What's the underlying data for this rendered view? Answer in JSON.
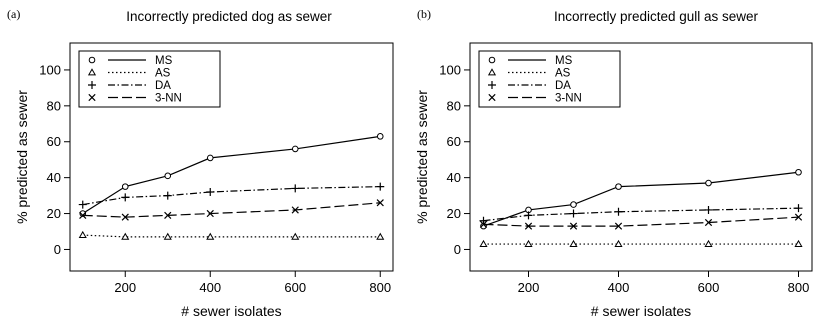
{
  "chart_data": [
    {
      "type": "line",
      "panel_label": "(a)",
      "title": "Incorrectly predicted dog as sewer",
      "xlabel": "# sewer isolates",
      "ylabel": "% predicted as sewer",
      "x": [
        100,
        200,
        300,
        400,
        600,
        800
      ],
      "xticks": [
        200,
        400,
        600,
        800
      ],
      "yticks": [
        0,
        20,
        40,
        60,
        80,
        100
      ],
      "ylim": [
        -12,
        115
      ],
      "xlim": [
        70,
        830
      ],
      "legend_position": "top-left",
      "grid": false,
      "series": [
        {
          "name": "MS",
          "marker": "circle",
          "dash": "solid",
          "values": [
            20,
            35,
            41,
            51,
            56,
            63
          ]
        },
        {
          "name": "AS",
          "marker": "triangle",
          "dash": "dotted",
          "values": [
            8,
            7,
            7,
            7,
            7,
            7
          ]
        },
        {
          "name": "DA",
          "marker": "plus",
          "dash": "dotdash",
          "values": [
            25,
            29,
            30,
            32,
            34,
            35
          ]
        },
        {
          "name": "3-NN",
          "marker": "x",
          "dash": "longdash",
          "values": [
            19,
            18,
            19,
            20,
            22,
            26
          ]
        }
      ]
    },
    {
      "type": "line",
      "panel_label": "(b)",
      "title": "Incorrectly predicted gull as sewer",
      "xlabel": "# sewer isolates",
      "ylabel": "% predicted as sewer",
      "x": [
        100,
        200,
        300,
        400,
        600,
        800
      ],
      "xticks": [
        200,
        400,
        600,
        800
      ],
      "yticks": [
        0,
        20,
        40,
        60,
        80,
        100
      ],
      "ylim": [
        -12,
        115
      ],
      "xlim": [
        70,
        830
      ],
      "legend_position": "top-left",
      "grid": false,
      "series": [
        {
          "name": "MS",
          "marker": "circle",
          "dash": "solid",
          "values": [
            13,
            22,
            25,
            35,
            37,
            43
          ]
        },
        {
          "name": "AS",
          "marker": "triangle",
          "dash": "dotted",
          "values": [
            3,
            3,
            3,
            3,
            3,
            3
          ]
        },
        {
          "name": "DA",
          "marker": "plus",
          "dash": "dotdash",
          "values": [
            16,
            19,
            20,
            21,
            22,
            23
          ]
        },
        {
          "name": "3-NN",
          "marker": "x",
          "dash": "longdash",
          "values": [
            14,
            13,
            13,
            13,
            15,
            18
          ]
        }
      ]
    }
  ]
}
